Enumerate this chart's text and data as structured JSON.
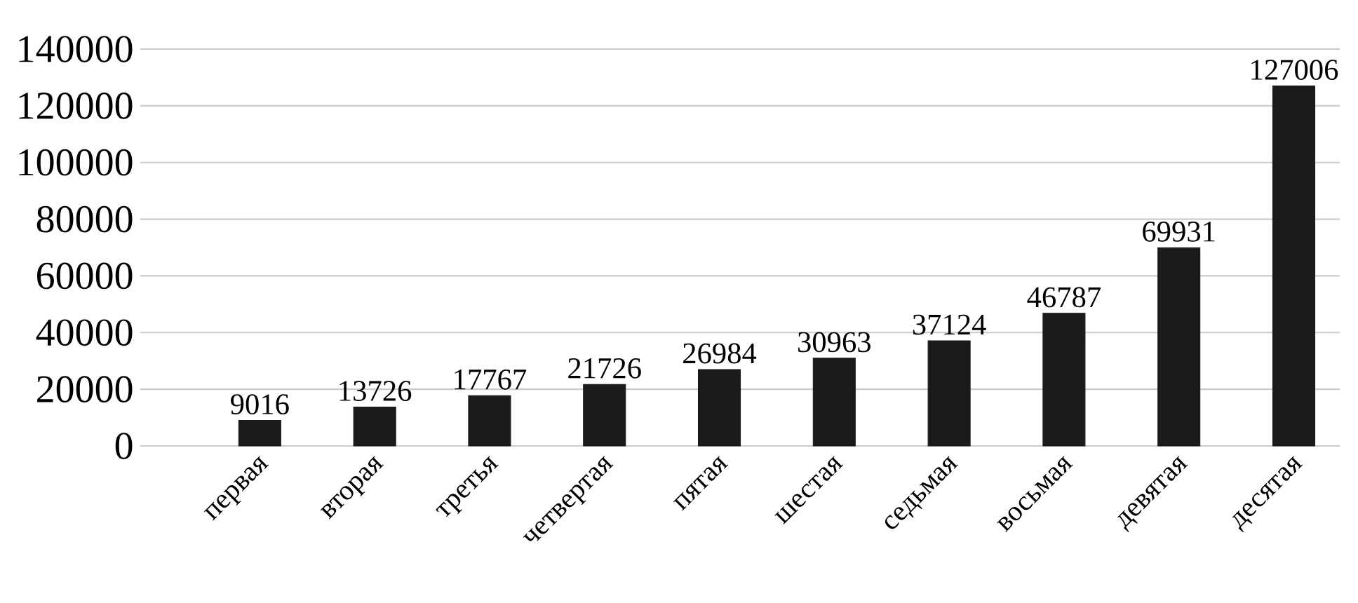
{
  "chart_data": {
    "type": "bar",
    "categories": [
      "первая",
      "вторая",
      "третья",
      "четвертая",
      "пятая",
      "шестая",
      "седьмая",
      "восьмая",
      "девятая",
      "десятая"
    ],
    "values": [
      9016,
      13726,
      17767,
      21726,
      26984,
      30963,
      37124,
      46787,
      69931,
      127006
    ],
    "color": "#1a1a1a",
    "ylim": [
      0,
      140000
    ],
    "yticks": [
      0,
      20000,
      40000,
      60000,
      80000,
      100000,
      120000,
      140000
    ],
    "grid": "y",
    "data_labels": true
  }
}
